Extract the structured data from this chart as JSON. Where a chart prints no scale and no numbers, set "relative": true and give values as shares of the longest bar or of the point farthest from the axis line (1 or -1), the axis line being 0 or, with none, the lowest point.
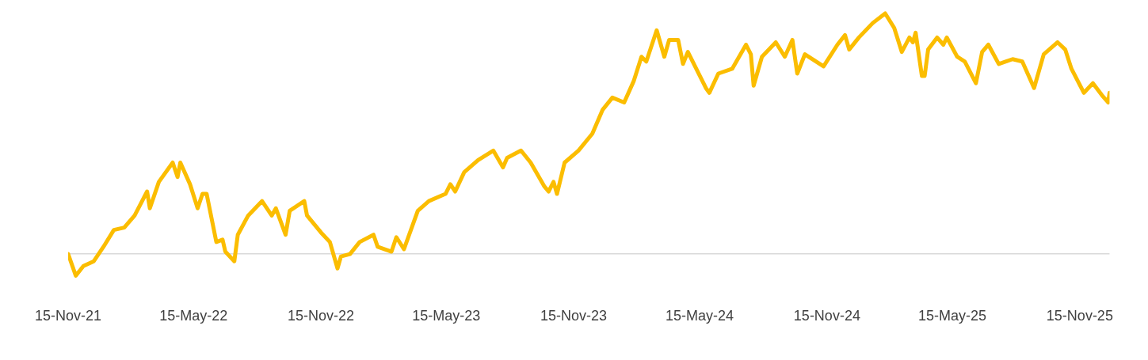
{
  "chart_data": {
    "type": "line",
    "relative": true,
    "xlim": [
      "2021-11-15",
      "2025-12-28"
    ],
    "xticks": [
      {
        "value": "2021-11-15",
        "label": "15-Nov-21"
      },
      {
        "value": "2022-05-15",
        "label": "15-May-22"
      },
      {
        "value": "2022-11-15",
        "label": "15-Nov-22"
      },
      {
        "value": "2023-05-15",
        "label": "15-May-23"
      },
      {
        "value": "2023-11-15",
        "label": "15-Nov-23"
      },
      {
        "value": "2024-05-15",
        "label": "15-May-24"
      },
      {
        "value": "2024-11-15",
        "label": "15-Nov-24"
      },
      {
        "value": "2025-05-15",
        "label": "15-May-25"
      },
      {
        "value": "2025-11-15",
        "label": "15-Nov-25"
      }
    ],
    "series": [
      {
        "color": "#fbbd00",
        "x": [
          "2021-11-15",
          "2021-11-26",
          "2021-12-07",
          "2021-12-22",
          "2022-01-05",
          "2022-01-20",
          "2022-02-04",
          "2022-02-19",
          "2022-03-09",
          "2022-03-13",
          "2022-03-26",
          "2022-04-15",
          "2022-04-22",
          "2022-04-26",
          "2022-05-10",
          "2022-05-21",
          "2022-05-28",
          "2022-06-03",
          "2022-06-17",
          "2022-06-26",
          "2022-06-30",
          "2022-07-13",
          "2022-07-18",
          "2022-08-02",
          "2022-08-22",
          "2022-09-05",
          "2022-09-11",
          "2022-09-25",
          "2022-10-01",
          "2022-10-22",
          "2022-10-26",
          "2022-11-15",
          "2022-11-28",
          "2022-12-09",
          "2022-12-14",
          "2022-12-27",
          "2023-01-10",
          "2023-01-30",
          "2023-02-05",
          "2023-02-25",
          "2023-03-04",
          "2023-03-15",
          "2023-04-04",
          "2023-04-20",
          "2023-05-14",
          "2023-05-21",
          "2023-05-28",
          "2023-06-10",
          "2023-06-30",
          "2023-07-22",
          "2023-08-05",
          "2023-08-11",
          "2023-08-31",
          "2023-09-14",
          "2023-10-04",
          "2023-10-10",
          "2023-10-17",
          "2023-10-22",
          "2023-11-02",
          "2023-11-22",
          "2023-12-12",
          "2023-12-27",
          "2024-01-10",
          "2024-01-27",
          "2024-02-10",
          "2024-02-21",
          "2024-02-28",
          "2024-03-14",
          "2024-03-25",
          "2024-04-01",
          "2024-04-14",
          "2024-04-21",
          "2024-04-28",
          "2024-05-24",
          "2024-05-29",
          "2024-06-11",
          "2024-07-01",
          "2024-07-21",
          "2024-07-28",
          "2024-08-01",
          "2024-08-13",
          "2024-09-02",
          "2024-09-15",
          "2024-09-26",
          "2024-10-03",
          "2024-10-14",
          "2024-11-10",
          "2024-11-30",
          "2024-12-11",
          "2024-12-17",
          "2024-12-31",
          "2025-01-20",
          "2025-02-07",
          "2025-02-20",
          "2025-03-03",
          "2025-03-14",
          "2025-03-19",
          "2025-03-23",
          "2025-04-01",
          "2025-04-05",
          "2025-04-10",
          "2025-04-23",
          "2025-05-02",
          "2025-05-07",
          "2025-05-22",
          "2025-06-02",
          "2025-06-18",
          "2025-06-27",
          "2025-07-06",
          "2025-07-21",
          "2025-08-10",
          "2025-08-24",
          "2025-09-10",
          "2025-09-24",
          "2025-10-14",
          "2025-10-25",
          "2025-11-03",
          "2025-11-21",
          "2025-12-04",
          "2025-12-17",
          "2025-12-26",
          "2025-12-28"
        ],
        "values": [
          0.0,
          -0.09,
          -0.05,
          -0.03,
          0.03,
          0.1,
          0.11,
          0.16,
          0.26,
          0.19,
          0.3,
          0.38,
          0.32,
          0.38,
          0.29,
          0.19,
          0.25,
          0.25,
          0.05,
          0.06,
          0.01,
          -0.03,
          0.08,
          0.16,
          0.22,
          0.16,
          0.19,
          0.08,
          0.18,
          0.22,
          0.16,
          0.09,
          0.05,
          -0.06,
          -0.01,
          0.0,
          0.05,
          0.08,
          0.03,
          0.01,
          0.07,
          0.02,
          0.18,
          0.22,
          0.25,
          0.29,
          0.26,
          0.34,
          0.39,
          0.43,
          0.36,
          0.4,
          0.43,
          0.38,
          0.28,
          0.26,
          0.3,
          0.25,
          0.38,
          0.43,
          0.5,
          0.6,
          0.65,
          0.63,
          0.72,
          0.82,
          0.8,
          0.93,
          0.82,
          0.89,
          0.89,
          0.79,
          0.84,
          0.69,
          0.67,
          0.75,
          0.77,
          0.87,
          0.83,
          0.7,
          0.82,
          0.88,
          0.82,
          0.89,
          0.75,
          0.83,
          0.78,
          0.87,
          0.91,
          0.85,
          0.9,
          0.96,
          1.0,
          0.94,
          0.84,
          0.9,
          0.88,
          0.92,
          0.74,
          0.74,
          0.85,
          0.9,
          0.87,
          0.9,
          0.82,
          0.8,
          0.71,
          0.84,
          0.87,
          0.79,
          0.81,
          0.8,
          0.69,
          0.83,
          0.88,
          0.85,
          0.77,
          0.67,
          0.71,
          0.66,
          0.63,
          0.67
        ]
      }
    ]
  }
}
